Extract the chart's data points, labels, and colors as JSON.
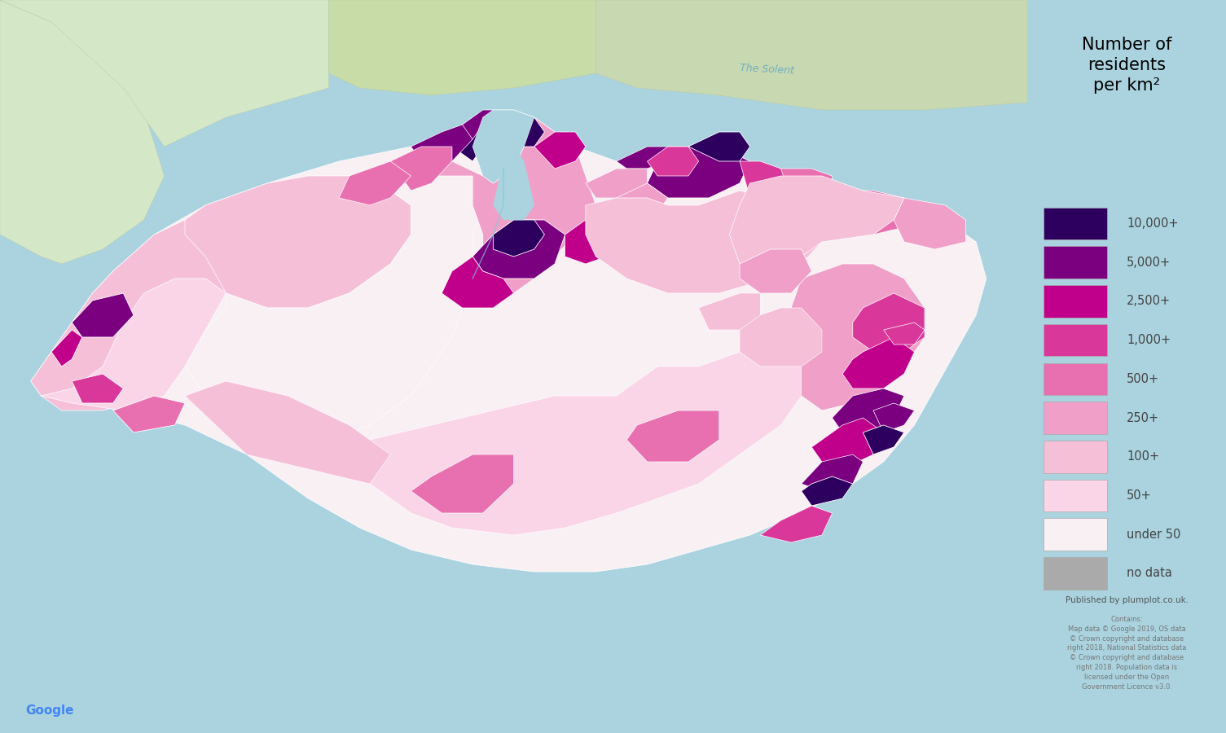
{
  "title": "Number of\nresidents\nper km²",
  "legend_labels": [
    "10,000+",
    "5,000+",
    "2,500+",
    "1,000+",
    "500+",
    "250+",
    "100+",
    "50+",
    "under 50",
    "no data"
  ],
  "legend_colors": [
    "#2d0060",
    "#7b0080",
    "#c0008a",
    "#d9389a",
    "#e870b0",
    "#f0a0c8",
    "#f5bfd8",
    "#fad5e8",
    "#f9f0f4",
    "#aaaaaa"
  ],
  "sea_color": "#aad3df",
  "legend_bg": "#d8d8d8",
  "mainland_color": "#d4e8c8",
  "published_text": "Published by plumplot.co.uk.",
  "contains_text": "Contains:\nMap data © Google 2019, OS data\n© Crown copyright and database\nright 2018, National Statistics data\n© Crown copyright and database\nright 2018. Population data is\nlicensed under the Open\nGovernment Licence v3.0.",
  "google_text": "Google",
  "google_color": "#4285f4",
  "fig_width": 15.05,
  "fig_height": 9.0,
  "dpi": 100
}
